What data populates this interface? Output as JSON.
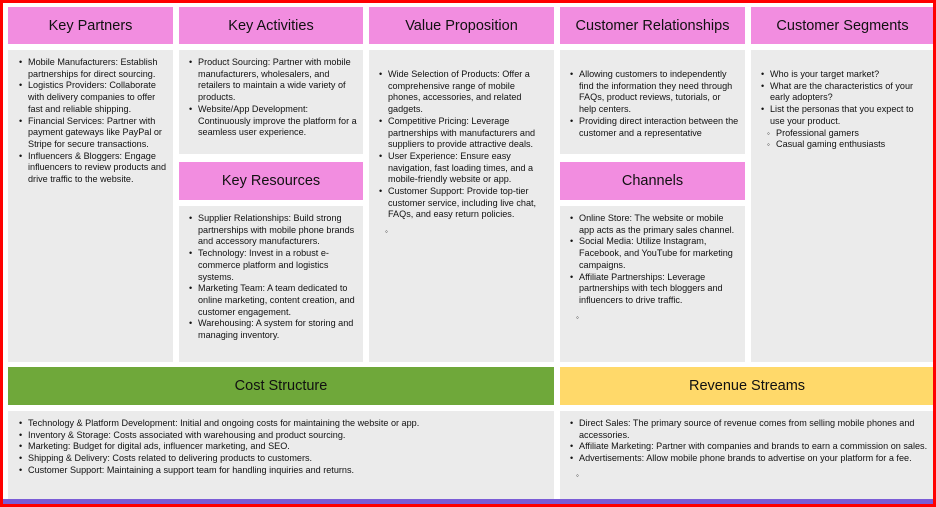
{
  "canvas": {
    "key_partners": {
      "title": "Key Partners",
      "items": [
        "Mobile Manufacturers: Establish partnerships for direct sourcing.",
        "Logistics Providers: Collaborate with delivery companies to offer fast and reliable shipping.",
        "Financial Services: Partner with payment gateways like PayPal or Stripe for secure transactions.",
        "Influencers & Bloggers: Engage influencers to review products and drive traffic to the website."
      ]
    },
    "key_activities": {
      "title": "Key Activities",
      "items": [
        "Product Sourcing: Partner with mobile manufacturers, wholesalers, and retailers to maintain a wide variety of products.",
        "Website/App Development: Continuously improve the platform for a seamless user experience."
      ]
    },
    "key_resources": {
      "title": "Key Resources",
      "items": [
        "Supplier Relationships: Build strong partnerships with mobile phone brands and accessory manufacturers.",
        "Technology: Invest in a robust e-commerce platform and logistics systems.",
        "Marketing Team: A team dedicated to online marketing, content creation, and customer engagement.",
        "Warehousing: A system for storing and managing inventory."
      ]
    },
    "value_proposition": {
      "title": "Value Proposition",
      "items": [
        "Wide Selection of Products: Offer a comprehensive range of mobile phones, accessories, and related gadgets.",
        "Competitive Pricing: Leverage partnerships with manufacturers and suppliers to provide attractive deals.",
        "User Experience: Ensure easy navigation, fast loading times, and a mobile-friendly website or app.",
        "Customer Support: Provide top-tier customer service, including live chat, FAQs, and easy return policies."
      ]
    },
    "customer_relationships": {
      "title": "Customer Relationships",
      "items": [
        "Allowing customers to independently find the information they need through FAQs, product reviews, tutorials, or help centers.",
        "Providing direct interaction between the customer and a representative"
      ]
    },
    "channels": {
      "title": "Channels",
      "items": [
        "Online Store: The website or mobile app acts as the primary sales channel.",
        "Social Media: Utilize Instagram, Facebook, and YouTube for marketing campaigns.",
        "Affiliate Partnerships: Leverage partnerships with tech bloggers and influencers to drive traffic."
      ]
    },
    "customer_segments": {
      "title": "Customer Segments",
      "items": [
        "Who is your target market?",
        "What are the characteristics of your early adopters?",
        "List the personas that you expect to use your product."
      ],
      "personas": [
        "Professional gamers",
        "Casual gaming enthusiasts"
      ]
    },
    "cost_structure": {
      "title": "Cost Structure",
      "items": [
        "Technology & Platform Development: Initial and ongoing costs for maintaining the website or app.",
        "Inventory & Storage: Costs associated with warehousing and product sourcing.",
        "Marketing: Budget for digital ads, influencer marketing, and SEO.",
        "Shipping & Delivery: Costs related to delivering products to customers.",
        "Customer Support: Maintaining a support team for handling inquiries and returns."
      ]
    },
    "revenue_streams": {
      "title": "Revenue Streams",
      "items": [
        "Direct Sales: The primary source of revenue comes from selling mobile phones and accessories.",
        "Affiliate Marketing: Partner with companies and brands to earn a commission on sales.",
        "Advertisements: Allow mobile phone brands to advertise on your platform for a fee."
      ]
    },
    "colors": {
      "pink": "#f28de0",
      "green": "#6fa83a",
      "yellow": "#ffd96a",
      "panel": "#ebebeb",
      "border": "#ff0000"
    }
  }
}
